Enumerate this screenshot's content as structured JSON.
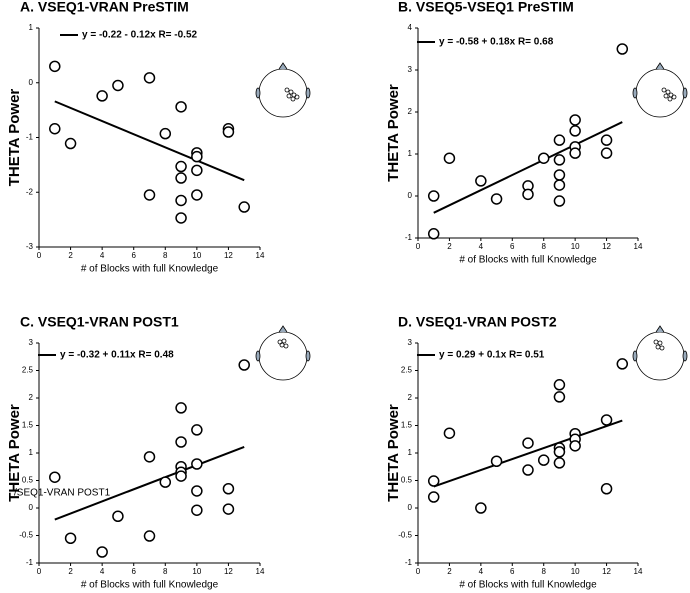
{
  "chart_data": [
    {
      "type": "scatter",
      "title": "A. VSEQ1-VRAN PreSTIM",
      "x_label": "# of Blocks with full Knowledge",
      "y_label": "THETA Power",
      "color": "#000000",
      "x": [
        1,
        1,
        2,
        4,
        5,
        7,
        7,
        8,
        9,
        9,
        9,
        9,
        9,
        10,
        10,
        10,
        10,
        12,
        12,
        13
      ],
      "values": [
        0.3,
        -0.84,
        -1.11,
        -0.24,
        -0.05,
        0.09,
        -2.05,
        -0.93,
        -0.44,
        -1.53,
        -1.74,
        -2.15,
        -2.47,
        -1.28,
        -1.35,
        -1.6,
        -2.05,
        -0.84,
        -0.9,
        -2.27
      ],
      "fit": {
        "label": "y = -0.22 - 0.12x   R= -0.52",
        "intercept": -0.22,
        "slope": -0.12
      },
      "xlim": [
        0,
        14
      ],
      "xticks": [
        0,
        2,
        4,
        6,
        8,
        10,
        12,
        14
      ],
      "ylim": [
        -3,
        1
      ],
      "yticks": [
        -3,
        -2,
        -1,
        0,
        1
      ]
    },
    {
      "type": "scatter",
      "title": "B. VSEQ5-VSEQ1 PreSTIM",
      "x_label": "# of Blocks with full Knowledge",
      "y_label": "THETA Power",
      "color": "#000000",
      "x": [
        1,
        1,
        2,
        4,
        5,
        7,
        7,
        8,
        9,
        9,
        9,
        9,
        9,
        10,
        10,
        10,
        10,
        12,
        12,
        13
      ],
      "values": [
        -0.9,
        0.0,
        0.9,
        0.36,
        -0.07,
        0.24,
        0.04,
        0.9,
        1.33,
        0.86,
        0.5,
        0.26,
        -0.12,
        1.81,
        1.55,
        1.17,
        1.02,
        1.33,
        1.02,
        3.5
      ],
      "fit": {
        "label": "y = -0.58 + 0.18x   R= 0.68",
        "intercept": -0.58,
        "slope": 0.18
      },
      "xlim": [
        0,
        14
      ],
      "xticks": [
        0,
        2,
        4,
        6,
        8,
        10,
        12,
        14
      ],
      "ylim": [
        -1,
        4
      ],
      "yticks": [
        -1,
        0,
        1,
        2,
        3,
        4
      ]
    },
    {
      "type": "scatter",
      "title": "C. VSEQ1-VRAN POST1",
      "x_label": "# of Blocks with full Knowledge",
      "y_label": "THETA Power",
      "color": "#000000",
      "annotation": "/SEQ1-VRAN POST1",
      "x": [
        1,
        2,
        4,
        5,
        7,
        7,
        8,
        9,
        9,
        9,
        9,
        9,
        10,
        10,
        10,
        10,
        12,
        12,
        13
      ],
      "values": [
        0.56,
        -0.55,
        -0.8,
        -0.15,
        0.93,
        -0.51,
        0.47,
        1.82,
        1.2,
        0.75,
        0.65,
        0.58,
        1.42,
        0.8,
        0.31,
        -0.04,
        0.35,
        -0.02,
        2.6
      ],
      "fit": {
        "label": "y = -0.32 + 0.11x   R= 0.48",
        "intercept": -0.32,
        "slope": 0.11
      },
      "xlim": [
        0,
        14
      ],
      "xticks": [
        0,
        2,
        4,
        6,
        8,
        10,
        12,
        14
      ],
      "ylim": [
        -1,
        3
      ],
      "yticks": [
        -1,
        -0.5,
        0,
        0.5,
        1,
        1.5,
        2,
        2.5,
        3
      ]
    },
    {
      "type": "scatter",
      "title": "D. VSEQ1-VRAN POST2",
      "x_label": "# of Blocks with full Knowledge",
      "y_label": "THETA Power",
      "color": "#000000",
      "x": [
        1,
        1,
        2,
        4,
        5,
        7,
        7,
        8,
        9,
        9,
        9,
        9,
        9,
        10,
        10,
        10,
        12,
        12,
        13
      ],
      "values": [
        0.49,
        0.2,
        1.36,
        0.0,
        0.85,
        1.18,
        0.69,
        0.87,
        2.24,
        2.02,
        1.09,
        1.02,
        0.82,
        1.35,
        1.25,
        1.13,
        1.6,
        0.35,
        2.62
      ],
      "fit": {
        "label": "y = 0.29 + 0.1x   R= 0.51",
        "intercept": 0.29,
        "slope": 0.1
      },
      "xlim": [
        0,
        14
      ],
      "xticks": [
        0,
        2,
        4,
        6,
        8,
        10,
        12,
        14
      ],
      "ylim": [
        -1,
        3
      ],
      "yticks": [
        -1,
        -0.5,
        0,
        0.5,
        1,
        1.5,
        2,
        2.5,
        3
      ]
    }
  ]
}
